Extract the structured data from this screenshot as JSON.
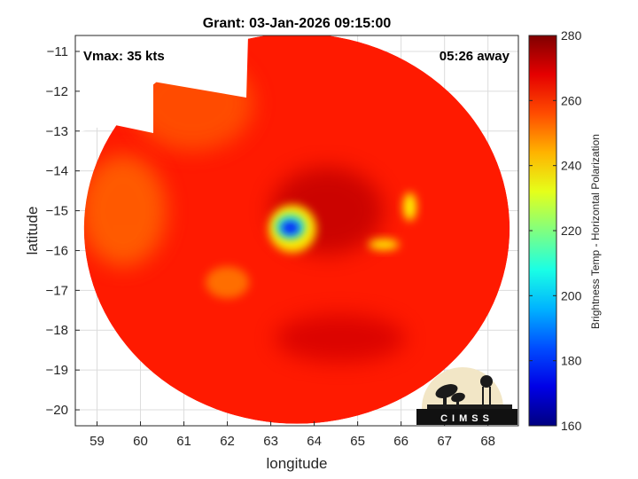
{
  "chart_data": {
    "type": "heatmap",
    "title": "Grant: 03-Jan-2026 09:15:00",
    "xlabel": "longitude",
    "ylabel": "latitude",
    "xlim": [
      58.5,
      68.7
    ],
    "ylim": [
      -20.4,
      -10.6
    ],
    "xticks": [
      59,
      60,
      61,
      62,
      63,
      64,
      65,
      66,
      67,
      68
    ],
    "yticks": [
      -11,
      -12,
      -13,
      -14,
      -15,
      -16,
      -17,
      -18,
      -19,
      -20
    ],
    "grid": true,
    "annotations": {
      "vmax": "Vmax: 35 kts",
      "time_away": "05:26 away"
    },
    "colorbar": {
      "label": "Brightness Temp - Horizontal Polarization",
      "min": 160,
      "max": 280,
      "ticks": [
        160,
        180,
        200,
        220,
        240,
        260,
        280
      ],
      "colormap": "jet"
    },
    "swath": {
      "center_lon": 63.6,
      "center_lat": -15.45,
      "radius_deg": 4.9
    },
    "background_temp": 262,
    "features": [
      {
        "lon": 63.5,
        "lat": -15.45,
        "rx": 0.55,
        "ry": 0.6,
        "temp": 238
      },
      {
        "lon": 63.45,
        "lat": -15.4,
        "rx": 0.35,
        "ry": 0.32,
        "temp": 212
      },
      {
        "lon": 63.45,
        "lat": -15.43,
        "rx": 0.22,
        "ry": 0.18,
        "temp": 178
      },
      {
        "lon": 66.2,
        "lat": -14.9,
        "rx": 0.15,
        "ry": 0.35,
        "temp": 236
      },
      {
        "lon": 65.6,
        "lat": -15.85,
        "rx": 0.35,
        "ry": 0.14,
        "temp": 238
      },
      {
        "lon": 64.3,
        "lat": -15.0,
        "rx": 1.3,
        "ry": 1.1,
        "temp": 272
      },
      {
        "lon": 61.2,
        "lat": -12.3,
        "rx": 1.4,
        "ry": 1.2,
        "temp": 255
      },
      {
        "lon": 59.6,
        "lat": -15.0,
        "rx": 1.0,
        "ry": 1.4,
        "temp": 253
      },
      {
        "lon": 62.0,
        "lat": -16.8,
        "rx": 0.5,
        "ry": 0.4,
        "temp": 252
      },
      {
        "lon": 64.6,
        "lat": -18.2,
        "rx": 1.5,
        "ry": 0.6,
        "temp": 270
      }
    ]
  },
  "logo": {
    "text": "CIMSS"
  }
}
